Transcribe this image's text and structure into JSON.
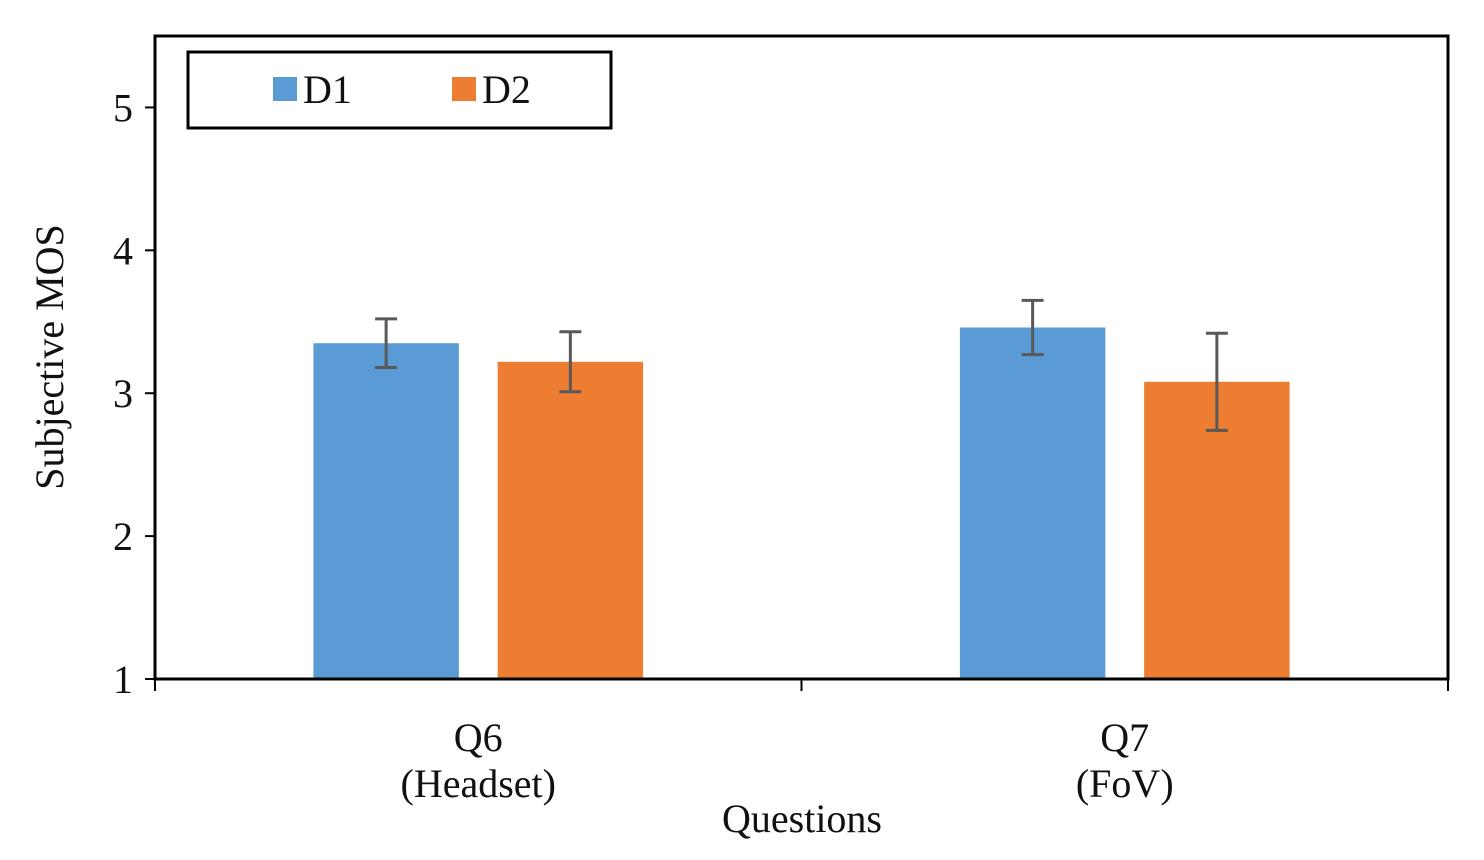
{
  "chart_data": {
    "type": "bar",
    "title": "",
    "categories": [
      [
        "Q6",
        "(Headset)"
      ],
      [
        "Q7",
        "(FoV)"
      ]
    ],
    "series": [
      {
        "name": "D1",
        "color": "#5B9BD5",
        "values": [
          3.35,
          3.46
        ],
        "errors": [
          0.17,
          0.19
        ]
      },
      {
        "name": "D2",
        "color": "#ED7D31",
        "values": [
          3.22,
          3.08
        ],
        "errors": [
          0.21,
          0.34
        ]
      }
    ],
    "xlabel": "Questions",
    "ylabel": "Subjective MOS",
    "ylim": [
      1,
      5.5
    ],
    "yticks": [
      1,
      2,
      3,
      4,
      5
    ],
    "grid": false,
    "legend_position": "top-left"
  }
}
